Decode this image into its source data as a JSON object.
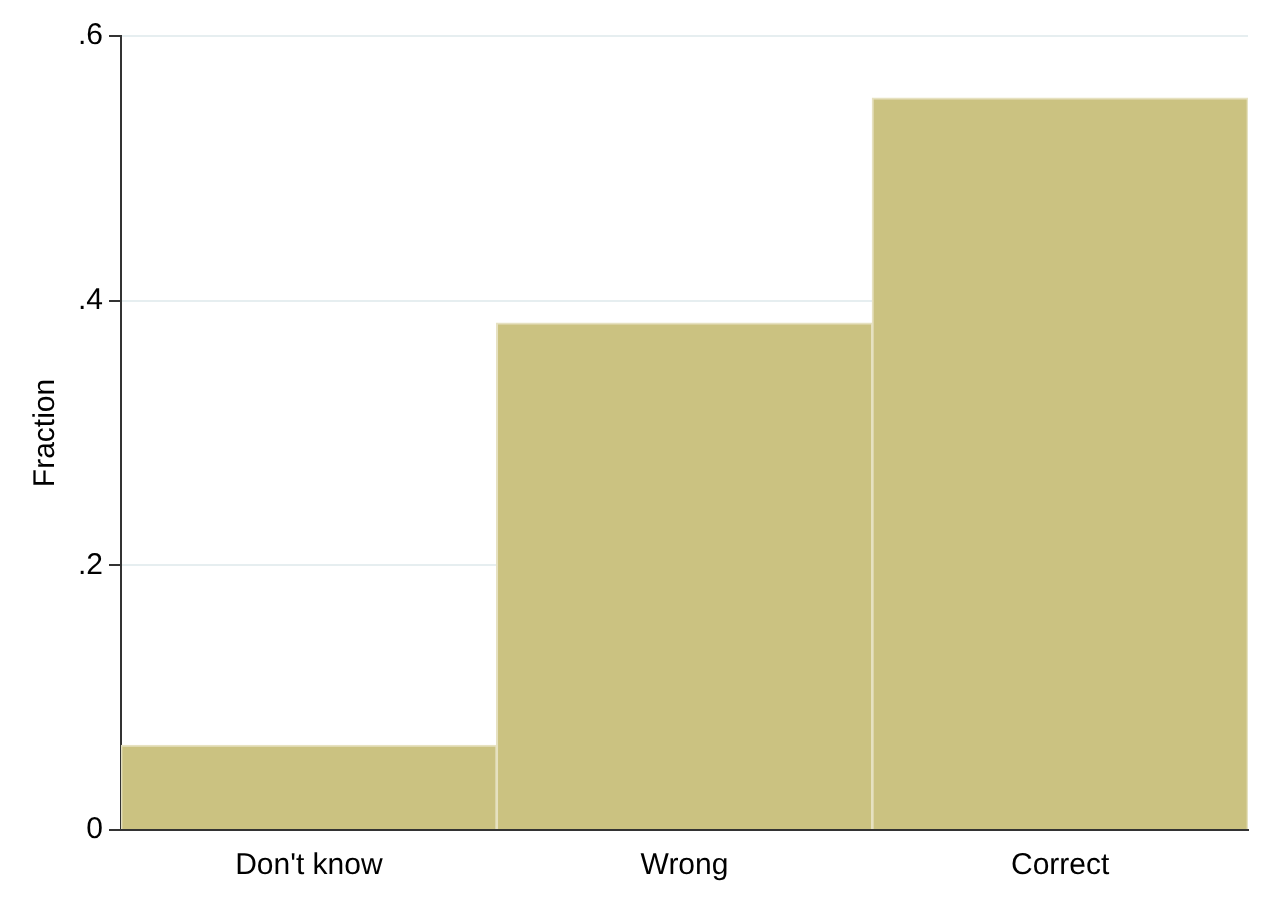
{
  "chart_data": {
    "type": "bar",
    "ylabel": "Fraction",
    "categories": [
      "Don't know",
      "Wrong",
      "Correct"
    ],
    "values": [
      0.064,
      0.383,
      0.553
    ],
    "color": "#cbc281",
    "ylim": [
      0,
      0.6
    ],
    "yticks": [
      {
        "value": 0,
        "label": "0"
      },
      {
        "value": 0.2,
        "label": ".2"
      },
      {
        "value": 0.4,
        "label": ".4"
      },
      {
        "value": 0.6,
        "label": ".6"
      }
    ],
    "grid": "y",
    "legend": false
  }
}
